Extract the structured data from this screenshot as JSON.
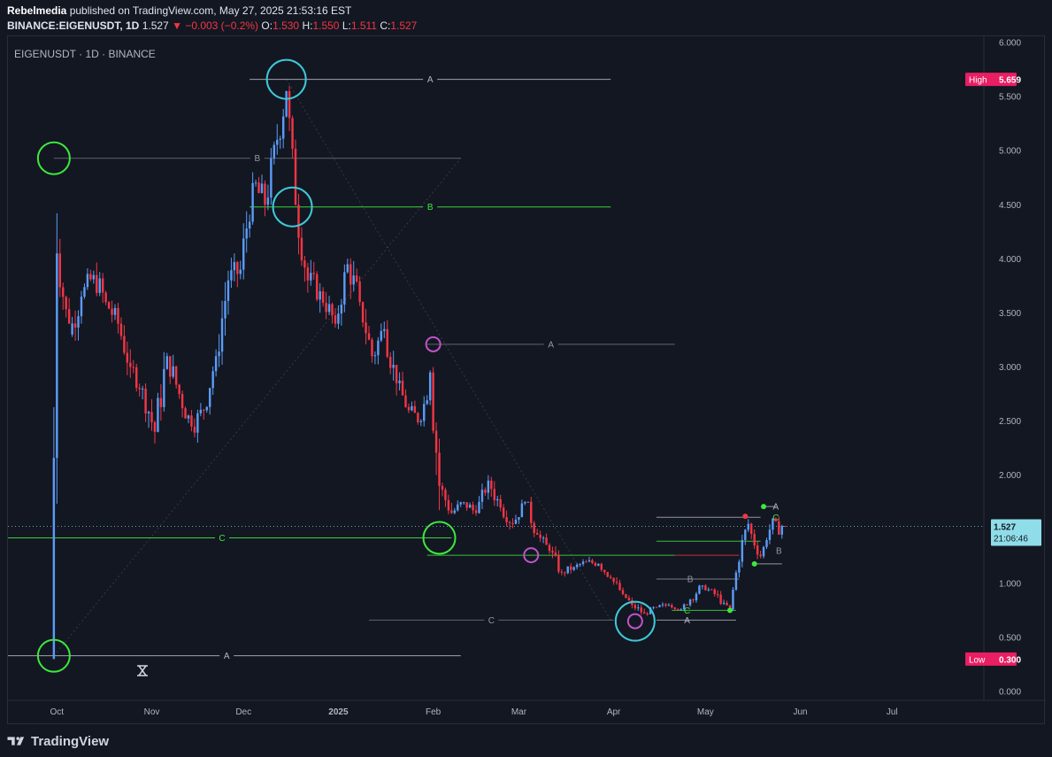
{
  "header": {
    "author": "Rebelmedia",
    "published": "published on TradingView.com, May 27, 2025 21:53:16 EST",
    "symbol": "BINANCE:EIGENUSDT, 1D",
    "last": "1.527",
    "change": "−0.003 (−0.2%)",
    "o_label": "O:",
    "o": "1.530",
    "h_label": "H:",
    "h": "1.550",
    "l_label": "L:",
    "l": "1.511",
    "c_label": "C:",
    "c": "1.527"
  },
  "footer": {
    "brand": "TradingView"
  },
  "colors": {
    "up": "#5b9cf6",
    "down": "#f23645",
    "green": "#3ee83e",
    "cyan": "#3fc8d8",
    "magenta": "#c054c8",
    "grey_line": "#9598a1",
    "dark_line": "#b2b5be",
    "high_badge": "#e91e63",
    "price_badge": "#8fdde8"
  },
  "chart_data": {
    "type": "candlestick",
    "title": "EIGENUSDT · 1D · BINANCE",
    "x_ticks": [
      "Oct",
      "Nov",
      "Dec",
      "2025",
      "Feb",
      "Mar",
      "Apr",
      "May",
      "Jun",
      "Jul"
    ],
    "y_ticks": [
      "6.000",
      "5.500",
      "5.000",
      "4.500",
      "4.000",
      "3.500",
      "3.000",
      "2.500",
      "2.000",
      "1.500",
      "1.000",
      "0.500",
      "0.000"
    ],
    "ylim": [
      0,
      6
    ],
    "xlim": [
      "2024-09-15",
      "2025-07-31"
    ],
    "grid": false,
    "high": {
      "label": "High",
      "value": "5.659",
      "y": 5.659
    },
    "low": {
      "label": "Low",
      "value": "0.300",
      "y": 0.3
    },
    "current": {
      "value": "1.527",
      "countdown": "21:06:46",
      "y": 1.527
    },
    "candles_anchor": [
      [
        "2024-09-30",
        0.3,
        4.95,
        0.3,
        4.05
      ],
      [
        "2024-10-02",
        4.05,
        4.25,
        3.4,
        3.3
      ],
      [
        "2024-10-06",
        3.3,
        3.8,
        3.1,
        3.65
      ],
      [
        "2024-10-10",
        3.65,
        4.15,
        3.5,
        3.85
      ],
      [
        "2024-10-14",
        3.85,
        4.1,
        3.4,
        3.6
      ],
      [
        "2024-10-18",
        3.6,
        3.8,
        3.2,
        3.4
      ],
      [
        "2024-10-22",
        3.4,
        3.65,
        2.9,
        3.0
      ],
      [
        "2024-10-26",
        3.0,
        3.2,
        2.65,
        2.8
      ],
      [
        "2024-10-30",
        2.8,
        3.0,
        2.25,
        2.4
      ],
      [
        "2024-11-03",
        2.4,
        3.3,
        2.3,
        3.1
      ],
      [
        "2024-11-07",
        3.1,
        3.3,
        2.6,
        2.75
      ],
      [
        "2024-11-11",
        2.75,
        2.9,
        2.3,
        2.45
      ],
      [
        "2024-11-15",
        2.45,
        2.7,
        2.15,
        2.6
      ],
      [
        "2024-11-19",
        2.6,
        3.2,
        2.55,
        3.1
      ],
      [
        "2024-11-23",
        3.1,
        4.0,
        3.0,
        3.8
      ],
      [
        "2024-11-27",
        3.8,
        4.1,
        3.4,
        3.9
      ],
      [
        "2024-12-01",
        3.9,
        4.8,
        3.8,
        4.7
      ],
      [
        "2024-12-05",
        4.7,
        5.2,
        4.3,
        4.5
      ],
      [
        "2024-12-09",
        4.5,
        5.3,
        4.4,
        5.1
      ],
      [
        "2024-12-13",
        5.1,
        5.66,
        4.7,
        5.55
      ],
      [
        "2024-12-16",
        5.55,
        5.6,
        4.4,
        4.5
      ],
      [
        "2024-12-19",
        4.5,
        4.6,
        3.6,
        3.8
      ],
      [
        "2024-12-23",
        3.8,
        4.0,
        3.3,
        3.7
      ],
      [
        "2024-12-27",
        3.7,
        3.9,
        3.3,
        3.4
      ],
      [
        "2025-01-01",
        3.4,
        4.1,
        3.35,
        3.95
      ],
      [
        "2025-01-05",
        3.95,
        4.3,
        3.5,
        3.6
      ],
      [
        "2025-01-09",
        3.6,
        3.7,
        3.0,
        3.1
      ],
      [
        "2025-01-13",
        3.1,
        3.55,
        2.75,
        3.35
      ],
      [
        "2025-01-17",
        3.35,
        3.45,
        2.7,
        2.85
      ],
      [
        "2025-01-21",
        2.85,
        3.0,
        2.5,
        2.6
      ],
      [
        "2025-01-25",
        2.6,
        2.8,
        2.4,
        2.5
      ],
      [
        "2025-01-29",
        2.5,
        3.2,
        2.45,
        2.95
      ],
      [
        "2025-02-01",
        2.95,
        3.0,
        1.6,
        1.9
      ],
      [
        "2025-02-04",
        1.9,
        2.0,
        1.55,
        1.65
      ],
      [
        "2025-02-08",
        1.65,
        1.85,
        1.55,
        1.75
      ],
      [
        "2025-02-12",
        1.75,
        1.9,
        1.55,
        1.65
      ],
      [
        "2025-02-16",
        1.65,
        2.0,
        1.6,
        1.95
      ],
      [
        "2025-02-20",
        1.95,
        2.1,
        1.6,
        1.7
      ],
      [
        "2025-02-24",
        1.7,
        1.8,
        1.45,
        1.55
      ],
      [
        "2025-02-28",
        1.55,
        1.8,
        1.5,
        1.75
      ],
      [
        "2025-03-04",
        1.75,
        1.8,
        1.35,
        1.45
      ],
      [
        "2025-03-08",
        1.45,
        1.5,
        1.2,
        1.3
      ],
      [
        "2025-03-12",
        1.3,
        1.35,
        0.98,
        1.1
      ],
      [
        "2025-03-16",
        1.1,
        1.25,
        1.05,
        1.15
      ],
      [
        "2025-03-20",
        1.15,
        1.25,
        1.1,
        1.2
      ],
      [
        "2025-03-24",
        1.2,
        1.3,
        1.12,
        1.18
      ],
      [
        "2025-03-28",
        1.18,
        1.2,
        1.0,
        1.05
      ],
      [
        "2025-04-01",
        1.05,
        1.1,
        0.85,
        0.9
      ],
      [
        "2025-04-05",
        0.9,
        0.95,
        0.75,
        0.8
      ],
      [
        "2025-04-08",
        0.8,
        0.82,
        0.63,
        0.72
      ],
      [
        "2025-04-12",
        0.72,
        0.85,
        0.7,
        0.78
      ],
      [
        "2025-04-16",
        0.78,
        0.85,
        0.72,
        0.8
      ],
      [
        "2025-04-20",
        0.8,
        0.82,
        0.72,
        0.76
      ],
      [
        "2025-04-24",
        0.76,
        0.9,
        0.74,
        0.85
      ],
      [
        "2025-04-27",
        0.85,
        1.05,
        0.82,
        0.98
      ],
      [
        "2025-05-01",
        0.98,
        1.02,
        0.86,
        0.9
      ],
      [
        "2025-05-05",
        0.9,
        1.05,
        0.8,
        0.82
      ],
      [
        "2025-05-08",
        0.82,
        0.85,
        0.73,
        0.76
      ],
      [
        "2025-05-10",
        0.76,
        1.15,
        0.75,
        1.1
      ],
      [
        "2025-05-12",
        1.1,
        1.45,
        1.05,
        1.4
      ],
      [
        "2025-05-14",
        1.4,
        1.65,
        1.35,
        1.55
      ],
      [
        "2025-05-16",
        1.55,
        1.62,
        1.3,
        1.35
      ],
      [
        "2025-05-18",
        1.35,
        1.4,
        1.15,
        1.25
      ],
      [
        "2025-05-20",
        1.25,
        1.45,
        1.2,
        1.4
      ],
      [
        "2025-05-22",
        1.4,
        1.65,
        1.35,
        1.6
      ],
      [
        "2025-05-24",
        1.6,
        1.7,
        1.4,
        1.45
      ],
      [
        "2025-05-26",
        1.45,
        1.62,
        1.4,
        1.53
      ],
      [
        "2025-05-27",
        1.53,
        1.55,
        1.51,
        1.527
      ]
    ],
    "fib_lines": [
      {
        "label": "A",
        "y": 5.659,
        "x1": "2024-12-03",
        "x2": "2025-03-31",
        "color": "dark"
      },
      {
        "label": "B",
        "y": 4.93,
        "x1": "2024-09-30",
        "x2": "2025-02-10",
        "color": "grey"
      },
      {
        "label": "B",
        "y": 4.48,
        "x1": "2024-12-03",
        "x2": "2025-03-31",
        "color": "green"
      },
      {
        "label": "A",
        "y": 3.21,
        "x1": "2025-01-30",
        "x2": "2025-04-21",
        "color": "grey"
      },
      {
        "label": "C",
        "y": 1.42,
        "x1": "2024-09-10",
        "x2": "2025-02-07",
        "color": "green"
      },
      {
        "label": "C",
        "y": 0.66,
        "x1": "2025-01-11",
        "x2": "2025-04-01",
        "color": "grey"
      },
      {
        "label": "A",
        "y": 0.33,
        "x1": "2024-09-10",
        "x2": "2025-02-10",
        "color": "dark"
      }
    ],
    "annotation_labels": [
      "A",
      "B",
      "B",
      "A",
      "C",
      "C",
      "C",
      "A",
      "B",
      "A",
      "C",
      "A",
      "C",
      "B"
    ],
    "circles": [
      {
        "date": "2024-12-15",
        "y": 5.659,
        "color": "cyan",
        "size": "large"
      },
      {
        "date": "2024-12-17",
        "y": 4.48,
        "color": "cyan",
        "size": "large"
      },
      {
        "date": "2024-09-30",
        "y": 4.93,
        "color": "green",
        "size": "medium"
      },
      {
        "date": "2024-09-30",
        "y": 0.33,
        "color": "green",
        "size": "medium"
      },
      {
        "date": "2025-02-03",
        "y": 1.42,
        "color": "green",
        "size": "medium"
      },
      {
        "date": "2025-02-01",
        "y": 3.21,
        "color": "magenta",
        "size": "small"
      },
      {
        "date": "2025-03-05",
        "y": 1.26,
        "color": "magenta",
        "size": "small"
      },
      {
        "date": "2025-04-08",
        "y": 0.65,
        "color": "cyan",
        "size": "large"
      },
      {
        "date": "2025-04-08",
        "y": 0.65,
        "color": "magenta",
        "size": "small"
      }
    ]
  }
}
